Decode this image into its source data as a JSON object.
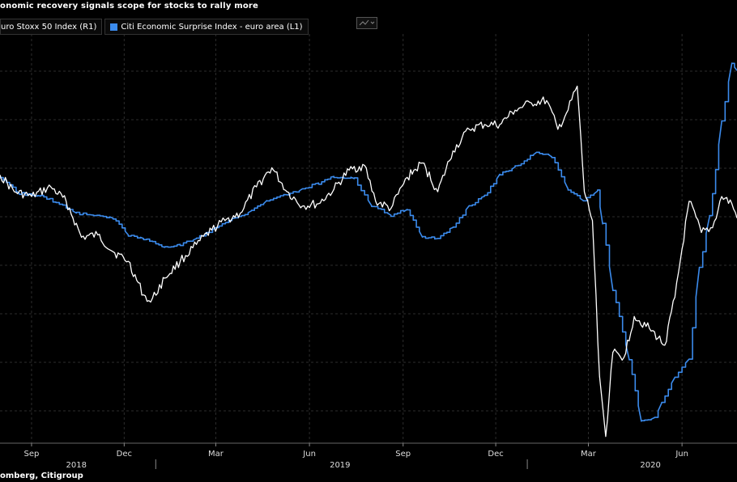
{
  "header": {
    "title": "onomic recovery signals scope for stocks to rally more"
  },
  "legend": {
    "items": [
      {
        "label": "uro Stoxx 50 Index (R1)",
        "color": "#ffffff"
      },
      {
        "label": "Citi Economic Surprise Index - euro area (L1)",
        "color": "#3b8bed"
      }
    ]
  },
  "footer": {
    "source": "omberg, Citigroup"
  },
  "chart_data": {
    "type": "line",
    "title": "onomic recovery signals scope for stocks to rally more",
    "grid": true,
    "legend_placement": "top-left",
    "x_ticks": [
      {
        "label": "Sep",
        "date": "2018-09-01"
      },
      {
        "label": "Dec",
        "date": "2018-12-01"
      },
      {
        "label": "Mar",
        "date": "2019-03-01"
      },
      {
        "label": "Jun",
        "date": "2019-06-01"
      },
      {
        "label": "Sep",
        "date": "2019-09-01"
      },
      {
        "label": "Dec",
        "date": "2019-12-01"
      },
      {
        "label": "Mar",
        "date": "2020-03-01"
      },
      {
        "label": "Jun",
        "date": "2020-06-01"
      }
    ],
    "year_labels": [
      {
        "label": "2018",
        "date": "2018-10-15"
      },
      {
        "label": "2019",
        "date": "2019-07-01"
      },
      {
        "label": "2020",
        "date": "2020-05-01"
      }
    ],
    "x_range": [
      "2018-08-01",
      "2020-07-25"
    ],
    "series": [
      {
        "name": "uro Stoxx 50 Index (R1)",
        "color": "#ffffff",
        "axis": "R1",
        "points": [
          [
            "2018-08-01",
            3490
          ],
          [
            "2018-08-15",
            3420
          ],
          [
            "2018-09-01",
            3400
          ],
          [
            "2018-09-20",
            3440
          ],
          [
            "2018-10-05",
            3380
          ],
          [
            "2018-10-20",
            3230
          ],
          [
            "2018-11-05",
            3240
          ],
          [
            "2018-11-20",
            3170
          ],
          [
            "2018-12-05",
            3130
          ],
          [
            "2018-12-20",
            2990
          ],
          [
            "2018-12-27",
            2960
          ],
          [
            "2019-01-10",
            3060
          ],
          [
            "2019-01-25",
            3130
          ],
          [
            "2019-02-10",
            3200
          ],
          [
            "2019-02-25",
            3260
          ],
          [
            "2019-03-10",
            3300
          ],
          [
            "2019-03-25",
            3330
          ],
          [
            "2019-04-10",
            3440
          ],
          [
            "2019-04-25",
            3520
          ],
          [
            "2019-05-10",
            3420
          ],
          [
            "2019-05-25",
            3360
          ],
          [
            "2019-06-10",
            3370
          ],
          [
            "2019-06-25",
            3430
          ],
          [
            "2019-07-10",
            3510
          ],
          [
            "2019-07-25",
            3530
          ],
          [
            "2019-08-05",
            3380
          ],
          [
            "2019-08-20",
            3350
          ],
          [
            "2019-09-05",
            3480
          ],
          [
            "2019-09-20",
            3540
          ],
          [
            "2019-10-05",
            3420
          ],
          [
            "2019-10-20",
            3590
          ],
          [
            "2019-11-05",
            3680
          ],
          [
            "2019-11-20",
            3700
          ],
          [
            "2019-12-05",
            3700
          ],
          [
            "2019-12-20",
            3760
          ],
          [
            "2020-01-05",
            3790
          ],
          [
            "2020-01-20",
            3800
          ],
          [
            "2020-01-31",
            3680
          ],
          [
            "2020-02-10",
            3760
          ],
          [
            "2020-02-19",
            3860
          ],
          [
            "2020-02-26",
            3420
          ],
          [
            "2020-03-05",
            3300
          ],
          [
            "2020-03-12",
            2650
          ],
          [
            "2020-03-18",
            2400
          ],
          [
            "2020-03-25",
            2750
          ],
          [
            "2020-04-05",
            2730
          ],
          [
            "2020-04-15",
            2900
          ],
          [
            "2020-04-30",
            2850
          ],
          [
            "2020-05-15",
            2780
          ],
          [
            "2020-05-25",
            2980
          ],
          [
            "2020-06-08",
            3380
          ],
          [
            "2020-06-20",
            3250
          ],
          [
            "2020-07-01",
            3270
          ],
          [
            "2020-07-10",
            3400
          ],
          [
            "2020-07-20",
            3370
          ],
          [
            "2020-07-25",
            3310
          ]
        ]
      },
      {
        "name": "Citi Economic Surprise Index - euro area (L1)",
        "color": "#3b8bed",
        "axis": "L1",
        "points": [
          [
            "2018-08-01",
            2
          ],
          [
            "2018-08-20",
            -18
          ],
          [
            "2018-09-10",
            -22
          ],
          [
            "2018-09-25",
            -30
          ],
          [
            "2018-10-15",
            -45
          ],
          [
            "2018-11-01",
            -48
          ],
          [
            "2018-11-20",
            -52
          ],
          [
            "2018-12-05",
            -75
          ],
          [
            "2018-12-20",
            -80
          ],
          [
            "2019-01-10",
            -92
          ],
          [
            "2019-01-25",
            -88
          ],
          [
            "2019-02-10",
            -80
          ],
          [
            "2019-03-01",
            -65
          ],
          [
            "2019-03-20",
            -52
          ],
          [
            "2019-04-05",
            -42
          ],
          [
            "2019-04-20",
            -28
          ],
          [
            "2019-05-10",
            -20
          ],
          [
            "2019-05-25",
            -12
          ],
          [
            "2019-06-10",
            -4
          ],
          [
            "2019-06-25",
            5
          ],
          [
            "2019-07-15",
            2
          ],
          [
            "2019-08-01",
            -35
          ],
          [
            "2019-08-20",
            -48
          ],
          [
            "2019-09-05",
            -40
          ],
          [
            "2019-09-20",
            -78
          ],
          [
            "2019-10-05",
            -80
          ],
          [
            "2019-10-20",
            -65
          ],
          [
            "2019-11-05",
            -35
          ],
          [
            "2019-11-20",
            -22
          ],
          [
            "2019-12-05",
            8
          ],
          [
            "2019-12-20",
            18
          ],
          [
            "2020-01-10",
            38
          ],
          [
            "2020-01-25",
            32
          ],
          [
            "2020-02-10",
            -12
          ],
          [
            "2020-02-25",
            -28
          ],
          [
            "2020-03-10",
            -15
          ],
          [
            "2020-03-15",
            -60
          ],
          [
            "2020-03-25",
            -150
          ],
          [
            "2020-04-10",
            -245
          ],
          [
            "2020-04-22",
            -330
          ],
          [
            "2020-05-05",
            -325
          ],
          [
            "2020-05-12",
            -305
          ],
          [
            "2020-05-25",
            -270
          ],
          [
            "2020-06-08",
            -245
          ],
          [
            "2020-06-18",
            -120
          ],
          [
            "2020-06-28",
            -50
          ],
          [
            "2020-07-10",
            80
          ],
          [
            "2020-07-20",
            160
          ],
          [
            "2020-07-25",
            150
          ]
        ]
      }
    ]
  }
}
